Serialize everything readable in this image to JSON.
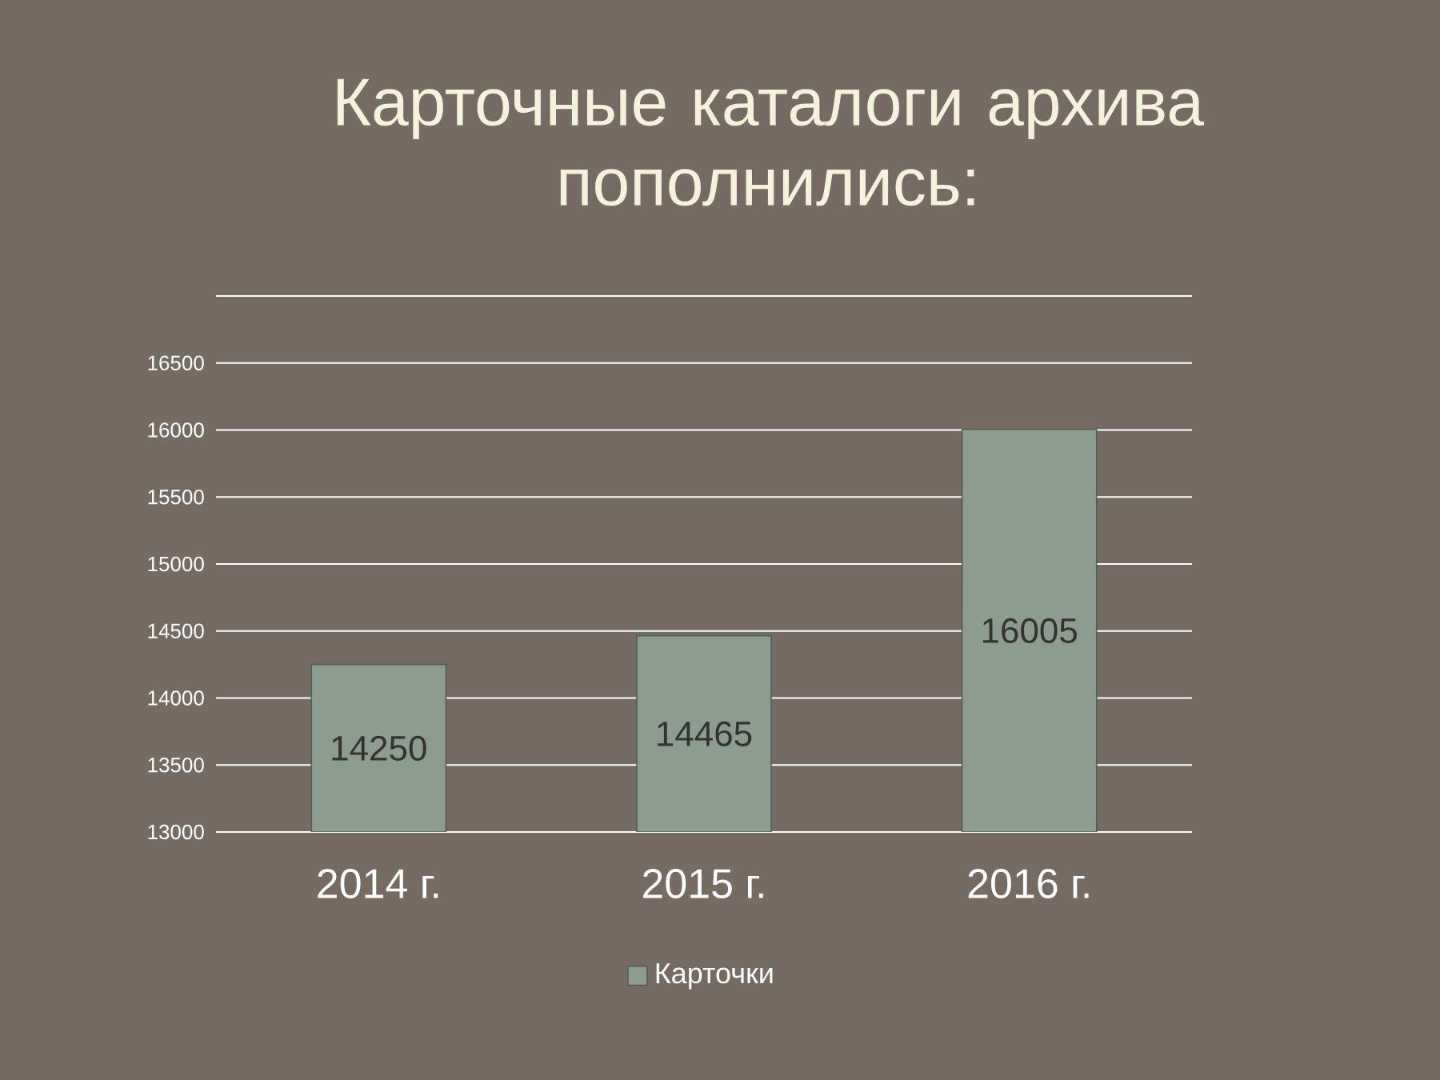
{
  "chart_data": {
    "type": "bar",
    "title": "Карточные каталоги архива\nпополнились:",
    "categories": [
      "2014 г.",
      "2015 г.",
      "2016 г."
    ],
    "series": [
      {
        "name": "Карточки",
        "color": "#8c9d90",
        "values": [
          14250,
          14465,
          16005
        ]
      }
    ],
    "ylim": [
      13000,
      17000
    ],
    "yticks": [
      13000,
      13500,
      14000,
      14500,
      15000,
      15500,
      16000,
      16500,
      {
        "value": 17000,
        "label": null
      }
    ],
    "grid": "y",
    "legend": "bottom",
    "data_labels": true
  }
}
